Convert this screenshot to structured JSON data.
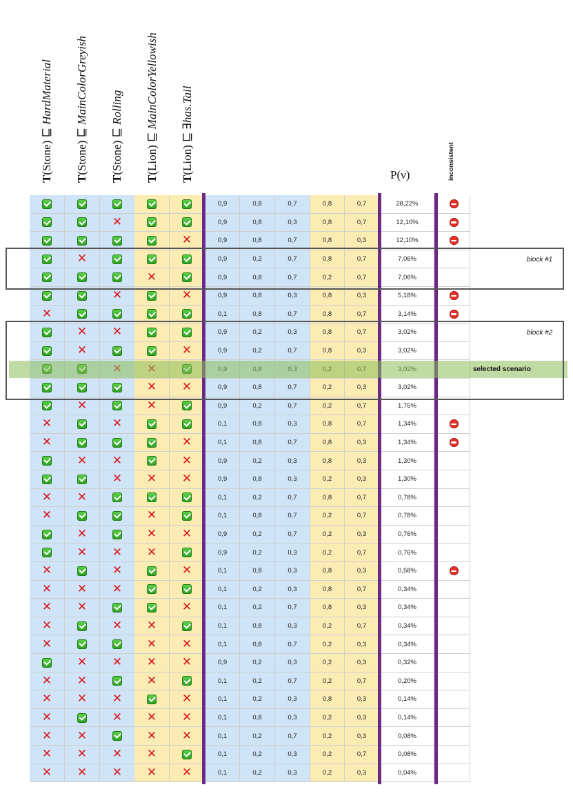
{
  "headers": [
    {
      "bold": "T",
      "arg": "(Stone)",
      "op": "⊑",
      "concept": "HardMaterial"
    },
    {
      "bold": "T",
      "arg": "(Stone)",
      "op": "⊑",
      "concept": "MainColorGreyish"
    },
    {
      "bold": "T",
      "arg": "(Stone)",
      "op": "⊑",
      "concept": "Rolling"
    },
    {
      "bold": "T",
      "arg": "(Lion)",
      "op": "⊑",
      "concept": "MainColorYellowish"
    },
    {
      "bold": "T",
      "arg": "(Lion)",
      "op": "⊑",
      "concept": "∃has.Tail"
    }
  ],
  "probability_label": "P(ν)",
  "inconsistent_label": "inconsistent",
  "block_labels": [
    "block #1",
    "block #2"
  ],
  "selected_label": "selected scenario",
  "rows": [
    {
      "flags": [
        1,
        1,
        1,
        1,
        1
      ],
      "probs": [
        "0,9",
        "0,8",
        "0,7",
        "0,8",
        "0,7"
      ],
      "p": "28,22%",
      "inc": true
    },
    {
      "flags": [
        1,
        1,
        0,
        1,
        1
      ],
      "probs": [
        "0,9",
        "0,8",
        "0,3",
        "0,8",
        "0,7"
      ],
      "p": "12,10%",
      "inc": true
    },
    {
      "flags": [
        1,
        1,
        1,
        1,
        0
      ],
      "probs": [
        "0,9",
        "0,8",
        "0,7",
        "0,8",
        "0,3"
      ],
      "p": "12,10%",
      "inc": true
    },
    {
      "flags": [
        1,
        0,
        1,
        1,
        1
      ],
      "probs": [
        "0,9",
        "0,2",
        "0,7",
        "0,8",
        "0,7"
      ],
      "p": "7,06%",
      "inc": false
    },
    {
      "flags": [
        1,
        1,
        1,
        0,
        1
      ],
      "probs": [
        "0,9",
        "0,8",
        "0,7",
        "0,2",
        "0,7"
      ],
      "p": "7,06%",
      "inc": false
    },
    {
      "flags": [
        1,
        1,
        0,
        1,
        0
      ],
      "probs": [
        "0,9",
        "0,8",
        "0,3",
        "0,8",
        "0,3"
      ],
      "p": "5,18%",
      "inc": true
    },
    {
      "flags": [
        0,
        1,
        1,
        1,
        1
      ],
      "probs": [
        "0,1",
        "0,8",
        "0,7",
        "0,8",
        "0,7"
      ],
      "p": "3,14%",
      "inc": true
    },
    {
      "flags": [
        1,
        0,
        0,
        1,
        1
      ],
      "probs": [
        "0,9",
        "0,2",
        "0,3",
        "0,8",
        "0,7"
      ],
      "p": "3,02%",
      "inc": false
    },
    {
      "flags": [
        1,
        0,
        1,
        1,
        0
      ],
      "probs": [
        "0,9",
        "0,2",
        "0,7",
        "0,8",
        "0,3"
      ],
      "p": "3,02%",
      "inc": false
    },
    {
      "flags": [
        1,
        1,
        0,
        0,
        1
      ],
      "probs": [
        "0,9",
        "0,8",
        "0,3",
        "0,2",
        "0,7"
      ],
      "p": "3,02%",
      "inc": false
    },
    {
      "flags": [
        1,
        1,
        1,
        0,
        0
      ],
      "probs": [
        "0,9",
        "0,8",
        "0,7",
        "0,2",
        "0,3"
      ],
      "p": "3,02%",
      "inc": false
    },
    {
      "flags": [
        1,
        0,
        1,
        0,
        1
      ],
      "probs": [
        "0,9",
        "0,2",
        "0,7",
        "0,2",
        "0,7"
      ],
      "p": "1,76%",
      "inc": false
    },
    {
      "flags": [
        0,
        1,
        0,
        1,
        1
      ],
      "probs": [
        "0,1",
        "0,8",
        "0,3",
        "0,8",
        "0,7"
      ],
      "p": "1,34%",
      "inc": true
    },
    {
      "flags": [
        0,
        1,
        1,
        1,
        0
      ],
      "probs": [
        "0,1",
        "0,8",
        "0,7",
        "0,8",
        "0,3"
      ],
      "p": "1,34%",
      "inc": true
    },
    {
      "flags": [
        1,
        0,
        0,
        1,
        0
      ],
      "probs": [
        "0,9",
        "0,2",
        "0,3",
        "0,8",
        "0,3"
      ],
      "p": "1,30%",
      "inc": false
    },
    {
      "flags": [
        1,
        1,
        0,
        0,
        0
      ],
      "probs": [
        "0,9",
        "0,8",
        "0,3",
        "0,2",
        "0,3"
      ],
      "p": "1,30%",
      "inc": false
    },
    {
      "flags": [
        0,
        0,
        1,
        1,
        1
      ],
      "probs": [
        "0,1",
        "0,2",
        "0,7",
        "0,8",
        "0,7"
      ],
      "p": "0,78%",
      "inc": false
    },
    {
      "flags": [
        0,
        1,
        1,
        0,
        1
      ],
      "probs": [
        "0,1",
        "0,8",
        "0,7",
        "0,2",
        "0,7"
      ],
      "p": "0,78%",
      "inc": false
    },
    {
      "flags": [
        1,
        0,
        1,
        0,
        0
      ],
      "probs": [
        "0,9",
        "0,2",
        "0,7",
        "0,2",
        "0,3"
      ],
      "p": "0,76%",
      "inc": false
    },
    {
      "flags": [
        1,
        0,
        0,
        0,
        1
      ],
      "probs": [
        "0,9",
        "0,2",
        "0,3",
        "0,2",
        "0,7"
      ],
      "p": "0,76%",
      "inc": false
    },
    {
      "flags": [
        0,
        1,
        0,
        1,
        0
      ],
      "probs": [
        "0,1",
        "0,8",
        "0,3",
        "0,8",
        "0,3"
      ],
      "p": "0,58%",
      "inc": true
    },
    {
      "flags": [
        0,
        0,
        0,
        1,
        1
      ],
      "probs": [
        "0,1",
        "0,2",
        "0,3",
        "0,8",
        "0,7"
      ],
      "p": "0,34%",
      "inc": false
    },
    {
      "flags": [
        0,
        0,
        1,
        1,
        0
      ],
      "probs": [
        "0,1",
        "0,2",
        "0,7",
        "0,8",
        "0,3"
      ],
      "p": "0,34%",
      "inc": false
    },
    {
      "flags": [
        0,
        1,
        0,
        0,
        1
      ],
      "probs": [
        "0,1",
        "0,8",
        "0,3",
        "0,2",
        "0,7"
      ],
      "p": "0,34%",
      "inc": false
    },
    {
      "flags": [
        0,
        1,
        1,
        0,
        0
      ],
      "probs": [
        "0,1",
        "0,8",
        "0,7",
        "0,2",
        "0,3"
      ],
      "p": "0,34%",
      "inc": false
    },
    {
      "flags": [
        1,
        0,
        0,
        0,
        0
      ],
      "probs": [
        "0,9",
        "0,2",
        "0,3",
        "0,2",
        "0,3"
      ],
      "p": "0,32%",
      "inc": false
    },
    {
      "flags": [
        0,
        0,
        1,
        0,
        1
      ],
      "probs": [
        "0,1",
        "0,2",
        "0,7",
        "0,2",
        "0,7"
      ],
      "p": "0,20%",
      "inc": false
    },
    {
      "flags": [
        0,
        0,
        0,
        1,
        0
      ],
      "probs": [
        "0,1",
        "0,2",
        "0,3",
        "0,8",
        "0,3"
      ],
      "p": "0,14%",
      "inc": false
    },
    {
      "flags": [
        0,
        1,
        0,
        0,
        0
      ],
      "probs": [
        "0,1",
        "0,8",
        "0,3",
        "0,2",
        "0,3"
      ],
      "p": "0,14%",
      "inc": false
    },
    {
      "flags": [
        0,
        0,
        1,
        0,
        0
      ],
      "probs": [
        "0,1",
        "0,2",
        "0,7",
        "0,2",
        "0,3"
      ],
      "p": "0,08%",
      "inc": false
    },
    {
      "flags": [
        0,
        0,
        0,
        0,
        1
      ],
      "probs": [
        "0,1",
        "0,2",
        "0,3",
        "0,2",
        "0,7"
      ],
      "p": "0,08%",
      "inc": false
    },
    {
      "flags": [
        0,
        0,
        0,
        0,
        0
      ],
      "probs": [
        "0,1",
        "0,2",
        "0,3",
        "0,2",
        "0,3"
      ],
      "p": "0,04%",
      "inc": false
    }
  ],
  "blocks": [
    {
      "label_index": 0,
      "first_row": 3,
      "last_row": 4
    },
    {
      "label_index": 1,
      "first_row": 7,
      "last_row": 10
    }
  ],
  "selected_row": 9
}
